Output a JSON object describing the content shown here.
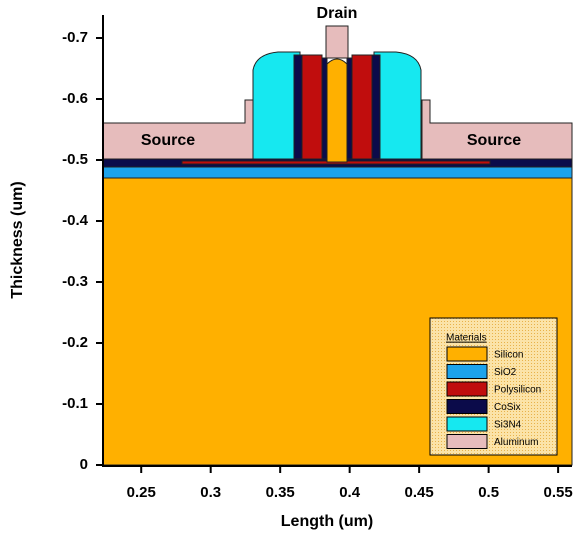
{
  "chart_data": {
    "type": "structure",
    "annotations": [
      "Drain",
      "Source",
      "Source"
    ],
    "xlabel": "Length (um)",
    "ylabel": "Thickness (um)",
    "xlim": [
      0.2225,
      0.56
    ],
    "ylim": [
      0,
      -0.74
    ],
    "xticks": [
      0.25,
      0.3,
      0.35,
      0.4,
      0.45,
      0.5,
      0.55
    ],
    "yticks": [
      0,
      -0.1,
      -0.2,
      -0.3,
      -0.4,
      -0.5,
      -0.6,
      -0.7
    ],
    "legend": {
      "title": "Materials",
      "corner": "lower right",
      "items": [
        {
          "name": "Silicon",
          "color": "#ffb000"
        },
        {
          "name": "SiO2",
          "color": "#1ca3ec"
        },
        {
          "name": "Polysilicon",
          "color": "#c00d0d"
        },
        {
          "name": "CoSix",
          "color": "#0b0b4a"
        },
        {
          "name": "Si3N4",
          "color": "#16e8f0"
        },
        {
          "name": "Aluminum",
          "color": "#e6bcbc"
        }
      ]
    }
  }
}
